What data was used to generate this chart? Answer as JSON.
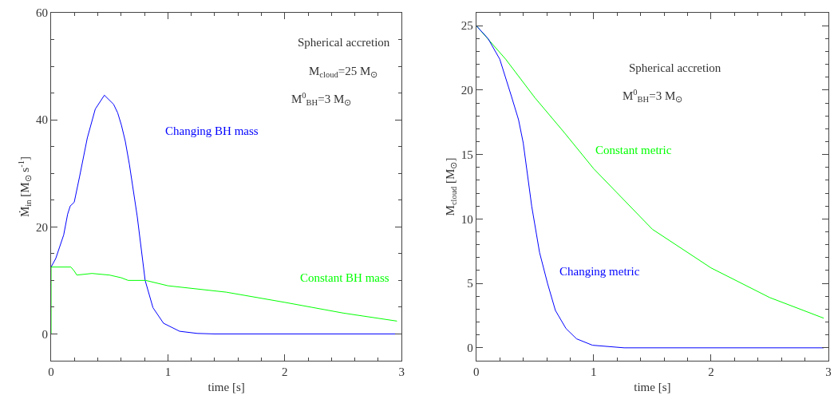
{
  "chart_data": [
    {
      "type": "line",
      "xlabel": "time [s]",
      "ylabel": "Ṁ$_{in}$ [M$_{⊙}$ s$^{-1}$]",
      "xlim": [
        0,
        3
      ],
      "ylim": [
        -5,
        60
      ],
      "xticks": [
        0,
        1,
        2,
        3
      ],
      "yticks": [
        0,
        20,
        40,
        60
      ],
      "legend": false,
      "annotations": [
        "Spherical accretion",
        "M$_{cloud}$=25 M$_{⊙}$",
        "M$^{0}$$_{BH}$=3 M$_{⊙}$"
      ],
      "series": [
        {
          "name": "Changing BH mass",
          "color": "#0000ff",
          "x": [
            0,
            0.04,
            0.108,
            0.142,
            0.164,
            0.198,
            0.243,
            0.31,
            0.378,
            0.456,
            0.535,
            0.57,
            0.602,
            0.635,
            0.67,
            0.737,
            0.805,
            0.872,
            0.962,
            1.1,
            1.25,
            1.4,
            2.96
          ],
          "values": [
            12.5,
            14.1,
            18.5,
            22.4,
            23.9,
            24.6,
            29.3,
            36.6,
            42,
            44.6,
            42.9,
            41.3,
            39,
            36,
            31.7,
            22,
            10,
            4.9,
            2,
            0.5,
            0.1,
            0,
            0
          ]
        },
        {
          "name": "Constant BH mass",
          "color": "#00ff00",
          "x": [
            0,
            0,
            0.17,
            0.2,
            0.22,
            0.35,
            0.5,
            0.6,
            0.66,
            0.81,
            1.0,
            1.5,
            2.0,
            2.5,
            2.96
          ],
          "values": [
            0,
            12.5,
            12.5,
            11.7,
            11.0,
            11.3,
            11.0,
            10.5,
            10.0,
            10.0,
            9.0,
            7.8,
            5.9,
            3.9,
            2.4
          ]
        }
      ]
    },
    {
      "type": "line",
      "xlabel": "time [s]",
      "ylabel": "M$_{cloud}$ [M$_{⊙}$]",
      "xlim": [
        0,
        3
      ],
      "ylim": [
        -1,
        26
      ],
      "xticks": [
        0,
        1,
        2,
        3
      ],
      "yticks": [
        0,
        5,
        10,
        15,
        20,
        25
      ],
      "legend": false,
      "annotations": [
        "Spherical accretion",
        "M$^{0}$$_{BH}$=3 M$_{⊙}$"
      ],
      "series": [
        {
          "name": "Constant metric",
          "color": "#00ff00",
          "x": [
            0,
            0.25,
            0.5,
            0.75,
            1.0,
            1.5,
            2.0,
            2.5,
            2.96
          ],
          "values": [
            25,
            22.4,
            19.4,
            16.7,
            13.9,
            9.2,
            6.2,
            3.9,
            2.3
          ]
        },
        {
          "name": "Changing metric",
          "color": "#0000ff",
          "x": [
            0,
            0.1,
            0.2,
            0.3,
            0.36,
            0.4,
            0.472,
            0.539,
            0.607,
            0.674,
            0.764,
            0.854,
            0.99,
            1.26,
            2.96
          ],
          "values": [
            25,
            24,
            22.4,
            19.5,
            17.7,
            15.9,
            11,
            7.4,
            5,
            2.9,
            1.5,
            0.7,
            0.2,
            0,
            0
          ]
        }
      ]
    }
  ]
}
